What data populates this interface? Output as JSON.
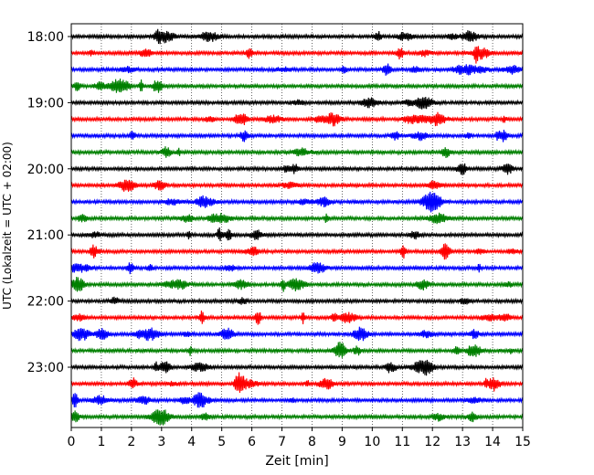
{
  "chart_data": {
    "type": "line",
    "title": "",
    "xlabel": "Zeit  [min]",
    "ylabel": "UTC (Lokalzeit = UTC + 02:00)",
    "xlim": [
      0,
      15
    ],
    "x_ticks": [
      "0",
      "1",
      "2",
      "3",
      "4",
      "5",
      "6",
      "7",
      "8",
      "9",
      "10",
      "11",
      "12",
      "13",
      "14",
      "15"
    ],
    "y_ticks": [
      "18:00",
      "19:00",
      "20:00",
      "21:00",
      "22:00",
      "23:00"
    ],
    "grid": {
      "x": true,
      "y": false,
      "style": "dotted"
    },
    "traces_per_hour": 4,
    "trace_minutes": 15,
    "colors": [
      "#000000",
      "#ff0000",
      "#0000ff",
      "#008000"
    ],
    "series": [
      {
        "start": "18:00",
        "color_index": 0
      },
      {
        "start": "18:15",
        "color_index": 1
      },
      {
        "start": "18:30",
        "color_index": 2
      },
      {
        "start": "18:45",
        "color_index": 3
      },
      {
        "start": "19:00",
        "color_index": 0
      },
      {
        "start": "19:15",
        "color_index": 1
      },
      {
        "start": "19:30",
        "color_index": 2
      },
      {
        "start": "19:45",
        "color_index": 3
      },
      {
        "start": "20:00",
        "color_index": 0
      },
      {
        "start": "20:15",
        "color_index": 1
      },
      {
        "start": "20:30",
        "color_index": 2
      },
      {
        "start": "20:45",
        "color_index": 3
      },
      {
        "start": "21:00",
        "color_index": 0
      },
      {
        "start": "21:15",
        "color_index": 1
      },
      {
        "start": "21:30",
        "color_index": 2
      },
      {
        "start": "21:45",
        "color_index": 3
      },
      {
        "start": "22:00",
        "color_index": 0
      },
      {
        "start": "22:15",
        "color_index": 1
      },
      {
        "start": "22:30",
        "color_index": 2
      },
      {
        "start": "22:45",
        "color_index": 3
      },
      {
        "start": "23:00",
        "color_index": 0
      },
      {
        "start": "23:15",
        "color_index": 1
      },
      {
        "start": "23:30",
        "color_index": 2
      },
      {
        "start": "23:45",
        "color_index": 3
      }
    ]
  }
}
